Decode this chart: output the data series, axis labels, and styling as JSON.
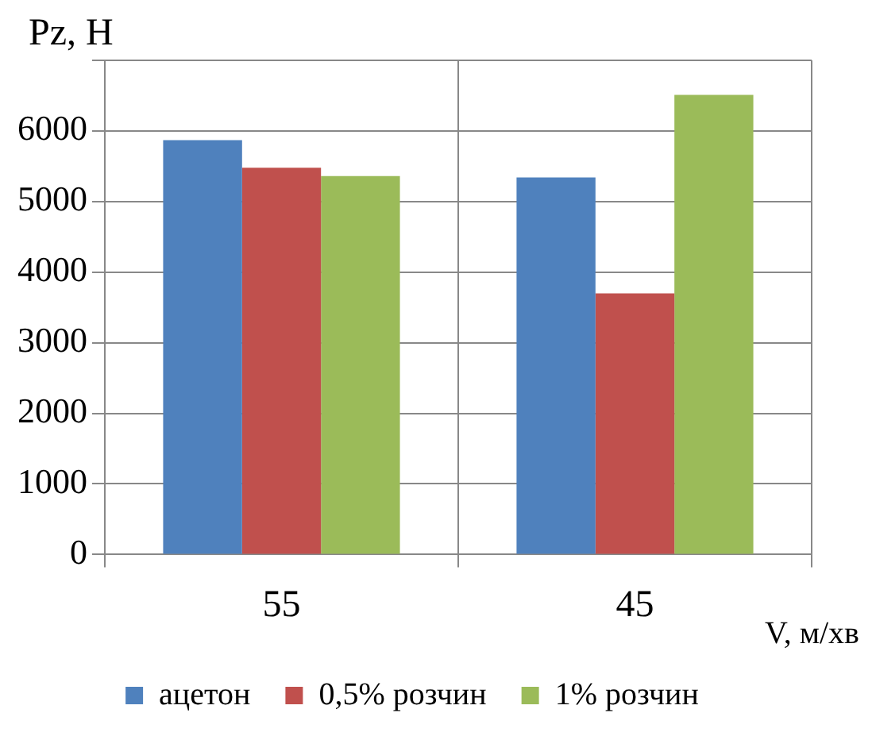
{
  "chart_data": {
    "type": "bar",
    "xlabel": "V, м/хв",
    "ylabel": "Pz, H",
    "categories": [
      "55",
      "45"
    ],
    "series": [
      {
        "name": "ацетон",
        "color": "#4f81bd",
        "values": [
          5870,
          5340
        ]
      },
      {
        "name": "0,5% розчин",
        "color": "#c0504d",
        "values": [
          5480,
          3700
        ]
      },
      {
        "name": "1% розчин",
        "color": "#9bbb59",
        "values": [
          5360,
          6510
        ]
      }
    ],
    "ylim": [
      0,
      7000
    ],
    "yticks": [
      0,
      1000,
      2000,
      3000,
      4000,
      5000,
      6000,
      {
        "value": 7000,
        "label": null
      }
    ],
    "grid": true,
    "legend": "bottom"
  }
}
